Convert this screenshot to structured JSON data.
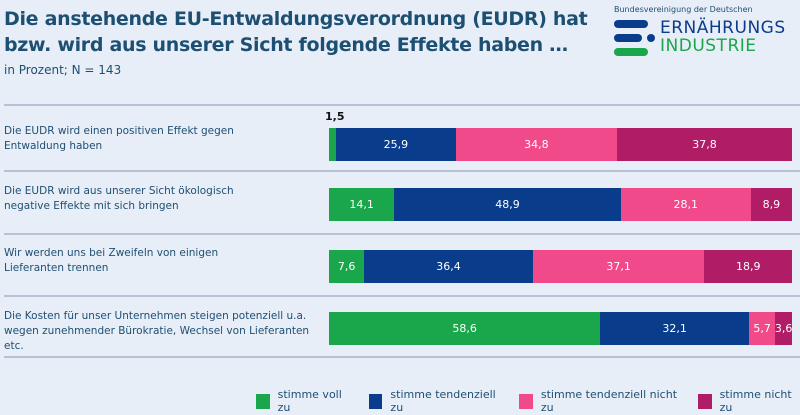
{
  "title_line1": "Die anstehende EU-Entwaldungsverordnung (EUDR) hat",
  "title_line2": "bzw. wird aus unserer Sicht folgende Effekte haben …",
  "subtitle": "in Prozent; N = 143",
  "logo": {
    "top": "Bundesvereinigung der Deutschen",
    "line1": "ERNÄHRUNGS",
    "line2": "INDUSTRIE"
  },
  "colors": {
    "stimme voll zu": "#1aa64a",
    "stimme tendenziell zu": "#0a3c8c",
    "stimme tendenziell nicht zu": "#f04a8a",
    "stimme nicht zu": "#b01c66"
  },
  "chart_data": {
    "type": "bar",
    "orientation": "horizontal",
    "stacked": true,
    "xlim": [
      0,
      100
    ],
    "legend_position": "bottom",
    "categories": [
      "Die EUDR wird einen positiven Effekt gegen Entwaldung haben",
      "Die EUDR wird aus unserer Sicht ökologisch negative Effekte mit sich bringen",
      "Wir werden uns bei Zweifeln von einigen Lieferanten trennen",
      "Die Kosten für unser Unternehmen steigen potenziell u.a. wegen zunehmender Bürokratie, Wechsel von Lieferanten etc."
    ],
    "category_lines": [
      [
        "Die EUDR wird einen positiven Effekt gegen",
        "Entwaldung haben"
      ],
      [
        "Die EUDR wird aus unserer Sicht ökologisch",
        "negative Effekte mit sich bringen"
      ],
      [
        "Wir werden uns bei Zweifeln von einigen",
        "Lieferanten trennen"
      ],
      [
        "Die Kosten für unser Unternehmen steigen potenziell u.a.",
        "wegen zunehmender Bürokratie, Wechsel von Lieferanten etc."
      ]
    ],
    "series": [
      {
        "name": "stimme voll zu",
        "values": [
          1.5,
          14.1,
          7.6,
          58.6
        ],
        "labels": [
          "1,5",
          "14,1",
          "7,6",
          "58,6"
        ]
      },
      {
        "name": "stimme tendenziell zu",
        "values": [
          25.9,
          48.9,
          36.4,
          32.1
        ],
        "labels": [
          "25,9",
          "48,9",
          "36,4",
          "32,1"
        ]
      },
      {
        "name": "stimme tendenziell nicht zu",
        "values": [
          34.8,
          28.1,
          37.1,
          5.7
        ],
        "labels": [
          "34,8",
          "28,1",
          "37,1",
          "5,7"
        ]
      },
      {
        "name": "stimme nicht zu",
        "values": [
          37.8,
          8.9,
          18.9,
          3.6
        ],
        "labels": [
          "37,8",
          "8,9",
          "18,9",
          "3,6"
        ]
      }
    ]
  }
}
